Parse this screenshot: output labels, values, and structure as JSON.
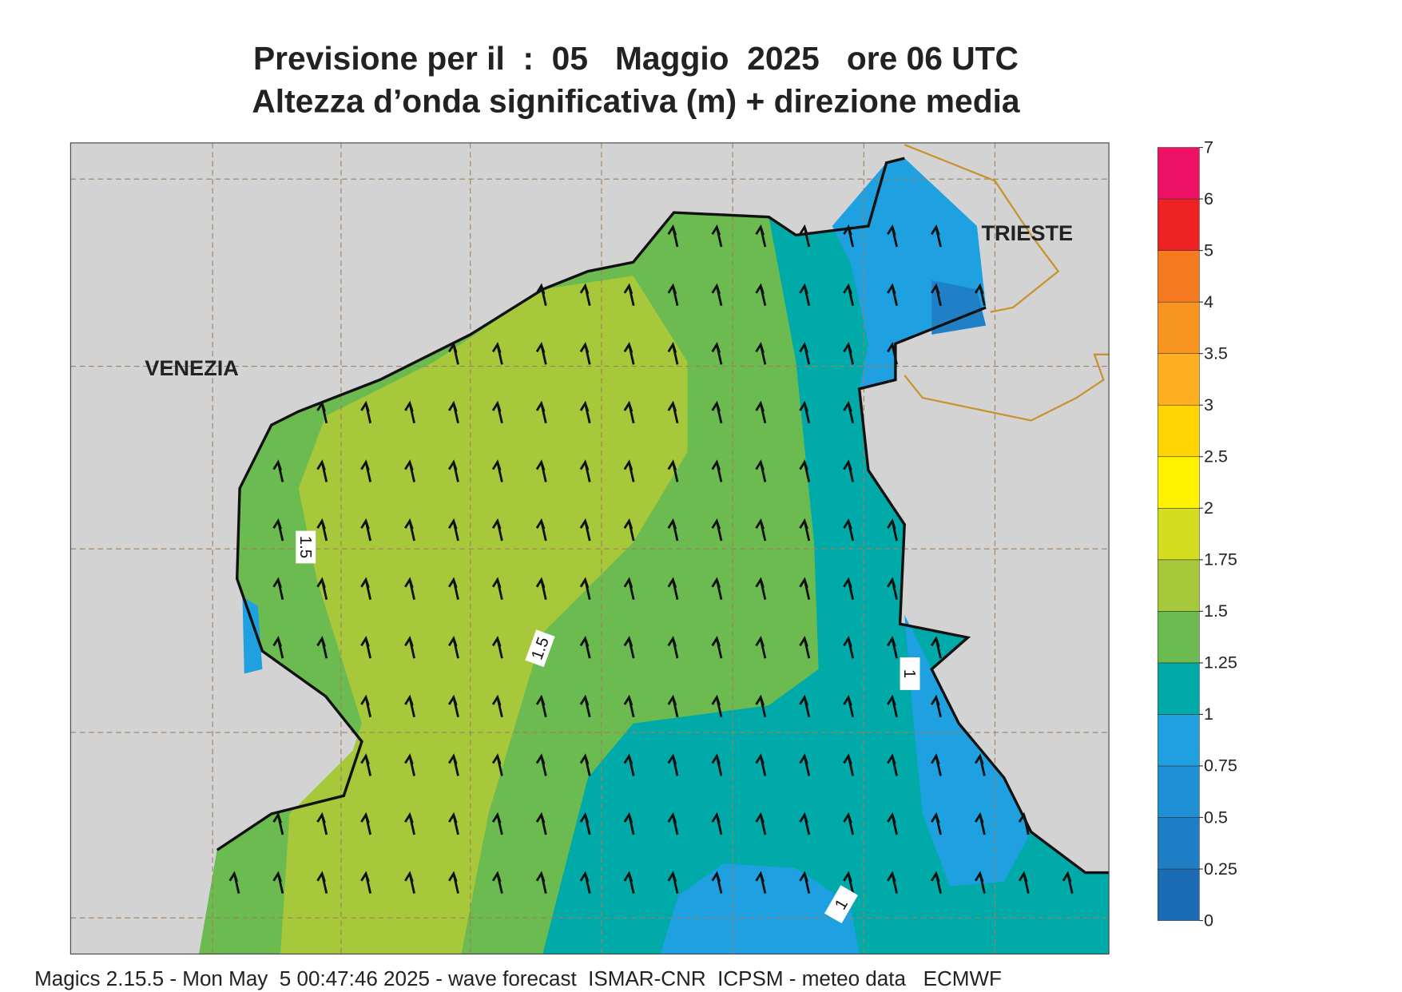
{
  "header": {
    "title_line1": "Previsione per il  :  05   Maggio  2025   ore 06 UTC",
    "title_line2": "Altezza d’onda significativa (m) + direzione media"
  },
  "map": {
    "labels": [
      "VENEZIA",
      "TRIESTE"
    ],
    "contour_labels": [
      1.5,
      1.5,
      1,
      1
    ]
  },
  "legend": {
    "levels": [
      0,
      0.25,
      0.5,
      0.75,
      1,
      1.25,
      1.5,
      1.75,
      2,
      2.5,
      3,
      3.5,
      4,
      5,
      6,
      7
    ],
    "colors": [
      "#1b6cb5",
      "#1f7fc6",
      "#1f8fd6",
      "#1fa0e0",
      "#00aaa8",
      "#6bbb50",
      "#a6c83a",
      "#d4dd20",
      "#fff200",
      "#ffd400",
      "#ffb020",
      "#f79520",
      "#f57a20",
      "#ee2222",
      "#ee1166"
    ]
  },
  "footer": "Magics 2.15.5 - Mon May  5 00:47:46 2025 - wave forecast  ISMAR-CNR  ICPSM - meteo data   ECMWF"
}
